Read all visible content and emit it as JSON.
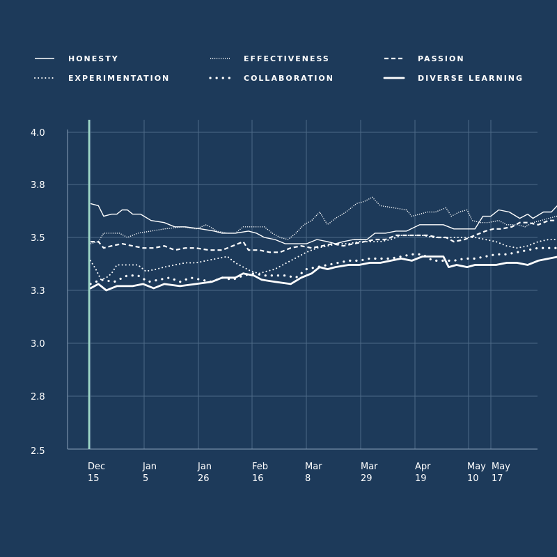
{
  "colors": {
    "background": "#1d3a5a",
    "grid": "#4d6a88",
    "axis": "#8aa2bb",
    "series": "#ffffff",
    "marker": "#9fd8c8"
  },
  "legend": {
    "items": [
      {
        "label": "HONESTY",
        "style": "solid"
      },
      {
        "label": "EFFECTIVENESS",
        "style": "dense-dotted"
      },
      {
        "label": "PASSION",
        "style": "dashed"
      },
      {
        "label": "EXPERIMENTATION",
        "style": "dotted"
      },
      {
        "label": "COLLABORATION",
        "style": "sparse-dotted"
      },
      {
        "label": "DIVERSE LEARNING",
        "style": "thick"
      }
    ]
  },
  "chart_data": {
    "type": "line",
    "y_ticks": [
      "4.0",
      "3.8",
      "3.5",
      "3.3",
      "3.0",
      "2.8",
      "2.5"
    ],
    "x_ticks": [
      {
        "line1": "Dec",
        "line2": "15"
      },
      {
        "line1": "Jan",
        "line2": "5"
      },
      {
        "line1": "Jan",
        "line2": "26"
      },
      {
        "line1": "Feb",
        "line2": "16"
      },
      {
        "line1": "Mar",
        "line2": "8"
      },
      {
        "line1": "Mar",
        "line2": "29"
      },
      {
        "line1": "Apr",
        "line2": "19"
      },
      {
        "line1": "May",
        "line2": "10"
      },
      {
        "line1": "May",
        "line2": "17"
      }
    ],
    "ylim": [
      2.5,
      4.0
    ],
    "x_unit": "days since Dec 15",
    "x_range": [
      -10,
      178
    ],
    "marker_day": 0,
    "grid": true,
    "legend_position": "top",
    "series": [
      {
        "name": "HONESTY",
        "style": "solid",
        "points": [
          [
            0,
            3.66
          ],
          [
            3,
            3.65
          ],
          [
            5,
            3.6
          ],
          [
            8,
            3.61
          ],
          [
            10,
            3.61
          ],
          [
            12,
            3.63
          ],
          [
            14,
            3.63
          ],
          [
            16,
            3.61
          ],
          [
            19,
            3.61
          ],
          [
            23,
            3.58
          ],
          [
            28,
            3.57
          ],
          [
            32,
            3.55
          ],
          [
            36,
            3.55
          ],
          [
            42,
            3.54
          ],
          [
            47,
            3.53
          ],
          [
            50,
            3.52
          ],
          [
            55,
            3.52
          ],
          [
            60,
            3.53
          ],
          [
            63,
            3.52
          ],
          [
            66,
            3.5
          ],
          [
            70,
            3.49
          ],
          [
            74,
            3.47
          ],
          [
            78,
            3.47
          ],
          [
            82,
            3.47
          ],
          [
            86,
            3.49
          ],
          [
            90,
            3.48
          ],
          [
            93,
            3.47
          ],
          [
            96,
            3.48
          ],
          [
            100,
            3.49
          ],
          [
            105,
            3.49
          ],
          [
            108,
            3.52
          ],
          [
            112,
            3.52
          ],
          [
            116,
            3.53
          ],
          [
            120,
            3.53
          ],
          [
            125,
            3.56
          ],
          [
            130,
            3.56
          ],
          [
            134,
            3.56
          ],
          [
            138,
            3.54
          ],
          [
            142,
            3.54
          ],
          [
            146,
            3.54
          ],
          [
            149,
            3.6
          ],
          [
            152,
            3.6
          ],
          [
            155,
            3.63
          ],
          [
            159,
            3.62
          ],
          [
            163,
            3.59
          ],
          [
            166,
            3.61
          ],
          [
            168,
            3.59
          ],
          [
            172,
            3.62
          ],
          [
            175,
            3.62
          ],
          [
            178,
            3.66
          ],
          [
            183,
            3.66
          ]
        ]
      },
      {
        "name": "EFFECTIVENESS",
        "style": "dense-dotted",
        "points": [
          [
            0,
            3.47
          ],
          [
            3,
            3.48
          ],
          [
            5,
            3.52
          ],
          [
            8,
            3.52
          ],
          [
            11,
            3.52
          ],
          [
            14,
            3.5
          ],
          [
            18,
            3.52
          ],
          [
            23,
            3.53
          ],
          [
            28,
            3.54
          ],
          [
            35,
            3.55
          ],
          [
            40,
            3.54
          ],
          [
            44,
            3.56
          ],
          [
            48,
            3.53
          ],
          [
            52,
            3.52
          ],
          [
            55,
            3.52
          ],
          [
            58,
            3.55
          ],
          [
            63,
            3.55
          ],
          [
            66,
            3.55
          ],
          [
            69,
            3.52
          ],
          [
            72,
            3.5
          ],
          [
            75,
            3.49
          ],
          [
            78,
            3.52
          ],
          [
            81,
            3.56
          ],
          [
            84,
            3.58
          ],
          [
            87,
            3.62
          ],
          [
            90,
            3.56
          ],
          [
            93,
            3.59
          ],
          [
            97,
            3.62
          ],
          [
            101,
            3.66
          ],
          [
            104,
            3.67
          ],
          [
            107,
            3.69
          ],
          [
            110,
            3.65
          ],
          [
            115,
            3.64
          ],
          [
            120,
            3.63
          ],
          [
            122,
            3.6
          ],
          [
            125,
            3.61
          ],
          [
            128,
            3.62
          ],
          [
            131,
            3.62
          ],
          [
            135,
            3.64
          ],
          [
            137,
            3.6
          ],
          [
            140,
            3.62
          ],
          [
            143,
            3.63
          ],
          [
            145,
            3.58
          ],
          [
            148,
            3.57
          ],
          [
            151,
            3.57
          ],
          [
            155,
            3.58
          ],
          [
            158,
            3.56
          ],
          [
            162,
            3.56
          ],
          [
            165,
            3.55
          ],
          [
            168,
            3.57
          ],
          [
            171,
            3.58
          ],
          [
            174,
            3.59
          ],
          [
            177,
            3.6
          ],
          [
            180,
            3.61
          ],
          [
            183,
            3.62
          ]
        ]
      },
      {
        "name": "PASSION",
        "style": "dashed",
        "points": [
          [
            0,
            3.48
          ],
          [
            3,
            3.48
          ],
          [
            5,
            3.45
          ],
          [
            8,
            3.46
          ],
          [
            12,
            3.47
          ],
          [
            16,
            3.46
          ],
          [
            20,
            3.45
          ],
          [
            24,
            3.45
          ],
          [
            28,
            3.46
          ],
          [
            32,
            3.44
          ],
          [
            36,
            3.45
          ],
          [
            40,
            3.45
          ],
          [
            45,
            3.44
          ],
          [
            50,
            3.44
          ],
          [
            54,
            3.46
          ],
          [
            58,
            3.48
          ],
          [
            60,
            3.44
          ],
          [
            64,
            3.44
          ],
          [
            68,
            3.43
          ],
          [
            72,
            3.43
          ],
          [
            76,
            3.45
          ],
          [
            80,
            3.46
          ],
          [
            84,
            3.45
          ],
          [
            88,
            3.46
          ],
          [
            92,
            3.47
          ],
          [
            96,
            3.46
          ],
          [
            100,
            3.47
          ],
          [
            104,
            3.48
          ],
          [
            108,
            3.49
          ],
          [
            112,
            3.49
          ],
          [
            116,
            3.51
          ],
          [
            120,
            3.51
          ],
          [
            124,
            3.51
          ],
          [
            128,
            3.51
          ],
          [
            132,
            3.5
          ],
          [
            135,
            3.5
          ],
          [
            138,
            3.48
          ],
          [
            142,
            3.49
          ],
          [
            146,
            3.51
          ],
          [
            150,
            3.53
          ],
          [
            153,
            3.54
          ],
          [
            156,
            3.54
          ],
          [
            160,
            3.55
          ],
          [
            163,
            3.57
          ],
          [
            166,
            3.57
          ],
          [
            170,
            3.56
          ],
          [
            174,
            3.58
          ],
          [
            178,
            3.58
          ],
          [
            183,
            3.59
          ]
        ]
      },
      {
        "name": "EXPERIMENTATION",
        "style": "dotted",
        "points": [
          [
            0,
            3.39
          ],
          [
            2,
            3.35
          ],
          [
            4,
            3.3
          ],
          [
            6,
            3.31
          ],
          [
            8,
            3.33
          ],
          [
            10,
            3.37
          ],
          [
            12,
            3.37
          ],
          [
            15,
            3.37
          ],
          [
            18,
            3.37
          ],
          [
            21,
            3.34
          ],
          [
            25,
            3.35
          ],
          [
            28,
            3.36
          ],
          [
            32,
            3.37
          ],
          [
            36,
            3.38
          ],
          [
            40,
            3.38
          ],
          [
            44,
            3.39
          ],
          [
            48,
            3.4
          ],
          [
            52,
            3.41
          ],
          [
            55,
            3.38
          ],
          [
            58,
            3.36
          ],
          [
            61,
            3.34
          ],
          [
            64,
            3.33
          ],
          [
            67,
            3.34
          ],
          [
            70,
            3.35
          ],
          [
            73,
            3.37
          ],
          [
            76,
            3.39
          ],
          [
            79,
            3.41
          ],
          [
            82,
            3.43
          ],
          [
            86,
            3.45
          ],
          [
            90,
            3.46
          ],
          [
            94,
            3.47
          ],
          [
            98,
            3.47
          ],
          [
            102,
            3.48
          ],
          [
            106,
            3.48
          ],
          [
            110,
            3.48
          ],
          [
            114,
            3.49
          ],
          [
            118,
            3.51
          ],
          [
            122,
            3.51
          ],
          [
            126,
            3.51
          ],
          [
            130,
            3.5
          ],
          [
            134,
            3.5
          ],
          [
            138,
            3.5
          ],
          [
            142,
            3.5
          ],
          [
            146,
            3.5
          ],
          [
            150,
            3.49
          ],
          [
            154,
            3.48
          ],
          [
            158,
            3.46
          ],
          [
            162,
            3.45
          ],
          [
            166,
            3.46
          ],
          [
            170,
            3.48
          ],
          [
            174,
            3.49
          ],
          [
            178,
            3.49
          ],
          [
            183,
            3.49
          ]
        ]
      },
      {
        "name": "COLLABORATION",
        "style": "sparse-dotted",
        "points": [
          [
            0,
            3.28
          ],
          [
            4,
            3.3
          ],
          [
            9,
            3.29
          ],
          [
            14,
            3.32
          ],
          [
            18,
            3.32
          ],
          [
            22,
            3.29
          ],
          [
            26,
            3.3
          ],
          [
            30,
            3.31
          ],
          [
            34,
            3.29
          ],
          [
            38,
            3.31
          ],
          [
            42,
            3.3
          ],
          [
            46,
            3.29
          ],
          [
            50,
            3.31
          ],
          [
            54,
            3.3
          ],
          [
            58,
            3.32
          ],
          [
            62,
            3.33
          ],
          [
            66,
            3.32
          ],
          [
            70,
            3.32
          ],
          [
            74,
            3.32
          ],
          [
            78,
            3.31
          ],
          [
            82,
            3.35
          ],
          [
            86,
            3.36
          ],
          [
            90,
            3.37
          ],
          [
            94,
            3.38
          ],
          [
            98,
            3.39
          ],
          [
            102,
            3.39
          ],
          [
            106,
            3.4
          ],
          [
            110,
            3.4
          ],
          [
            114,
            3.4
          ],
          [
            118,
            3.41
          ],
          [
            122,
            3.42
          ],
          [
            126,
            3.42
          ],
          [
            130,
            3.39
          ],
          [
            134,
            3.39
          ],
          [
            138,
            3.39
          ],
          [
            142,
            3.4
          ],
          [
            146,
            3.4
          ],
          [
            150,
            3.41
          ],
          [
            154,
            3.42
          ],
          [
            158,
            3.42
          ],
          [
            162,
            3.43
          ],
          [
            166,
            3.44
          ],
          [
            170,
            3.45
          ],
          [
            174,
            3.45
          ],
          [
            178,
            3.45
          ],
          [
            183,
            3.46
          ]
        ]
      },
      {
        "name": "DIVERSE LEARNING",
        "style": "thick",
        "points": [
          [
            0,
            3.26
          ],
          [
            3,
            3.28
          ],
          [
            6,
            3.25
          ],
          [
            10,
            3.27
          ],
          [
            16,
            3.27
          ],
          [
            20,
            3.28
          ],
          [
            24,
            3.26
          ],
          [
            28,
            3.28
          ],
          [
            34,
            3.27
          ],
          [
            40,
            3.28
          ],
          [
            46,
            3.29
          ],
          [
            50,
            3.31
          ],
          [
            55,
            3.31
          ],
          [
            58,
            3.33
          ],
          [
            62,
            3.32
          ],
          [
            65,
            3.3
          ],
          [
            70,
            3.29
          ],
          [
            76,
            3.28
          ],
          [
            80,
            3.31
          ],
          [
            84,
            3.33
          ],
          [
            87,
            3.36
          ],
          [
            90,
            3.35
          ],
          [
            93,
            3.36
          ],
          [
            98,
            3.37
          ],
          [
            102,
            3.37
          ],
          [
            106,
            3.38
          ],
          [
            110,
            3.38
          ],
          [
            114,
            3.39
          ],
          [
            118,
            3.4
          ],
          [
            122,
            3.39
          ],
          [
            126,
            3.41
          ],
          [
            130,
            3.41
          ],
          [
            134,
            3.41
          ],
          [
            136,
            3.36
          ],
          [
            139,
            3.37
          ],
          [
            143,
            3.36
          ],
          [
            146,
            3.37
          ],
          [
            150,
            3.37
          ],
          [
            154,
            3.37
          ],
          [
            158,
            3.38
          ],
          [
            162,
            3.38
          ],
          [
            166,
            3.37
          ],
          [
            170,
            3.39
          ],
          [
            174,
            3.4
          ],
          [
            178,
            3.41
          ],
          [
            183,
            3.42
          ]
        ]
      }
    ]
  }
}
